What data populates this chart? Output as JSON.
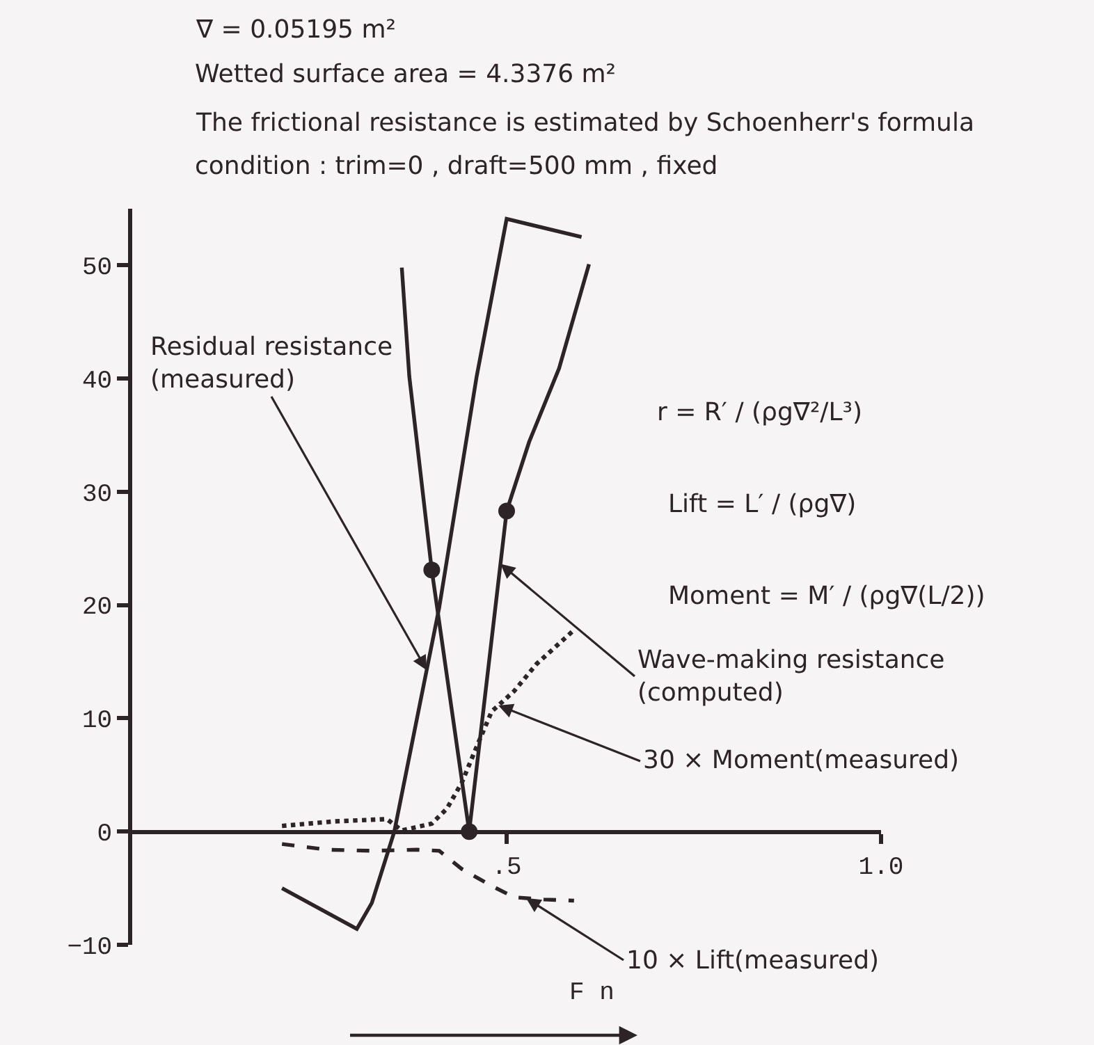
{
  "chart_data": {
    "type": "line",
    "annotations": [
      "∇ = 0.05195 m²",
      "Wetted surface area = 4.3376 m²",
      "The frictional resistance is estimated by Schoenherr's formula",
      "condition : trim=0 , draft=500 mm , fixed",
      "r = R′ / (ρg∇²/L³)",
      "Lift = L′ / (ρg∇)",
      "Moment = M′ / (ρg∇(L/2))"
    ],
    "xlabel": "F n",
    "xlim": [
      0,
      1.0
    ],
    "xticks": [
      {
        "value": 0.5,
        "label": ".5"
      },
      {
        "value": 1.0,
        "label": "1.0"
      }
    ],
    "ylim": [
      -10,
      55
    ],
    "yticks": [
      50,
      40,
      30,
      20,
      10,
      0,
      -10
    ],
    "series": [
      {
        "name": "Residual resistance (measured)",
        "type": "line",
        "color": "#2d2428",
        "line_style": "solid",
        "marker": "none",
        "x": [
          0.2,
          0.3,
          0.32,
          0.35,
          0.41,
          0.46,
          0.5,
          0.6
        ],
        "values": [
          -5.0,
          -8.6,
          -6.3,
          0.0,
          19.8,
          40.2,
          54.1,
          52.5
        ]
      },
      {
        "name": "Wave-making resistance (computed)",
        "type": "line",
        "color": "#2d2428",
        "line_style": "solid",
        "marker": "none",
        "x": [
          0.36,
          0.37,
          0.4,
          0.45,
          0.5,
          0.53,
          0.57,
          0.61
        ],
        "values": [
          49.8,
          40.2,
          23.1,
          0.0,
          28.3,
          34.4,
          40.9,
          50.1
        ]
      },
      {
        "name": "30 × Moment(measured)",
        "type": "line",
        "color": "#2d2428",
        "line_style": "dotted",
        "marker": "none",
        "x": [
          0.2,
          0.27,
          0.34,
          0.36,
          0.4,
          0.42,
          0.44,
          0.46,
          0.48,
          0.51,
          0.54,
          0.59
        ],
        "values": [
          0.5,
          0.9,
          1.1,
          0.1,
          0.7,
          2.0,
          4.3,
          7.5,
          10.6,
          12.4,
          14.8,
          17.8
        ]
      },
      {
        "name": "10 × Lift(measured)",
        "type": "line",
        "color": "#2d2428",
        "line_style": "dashed",
        "marker": "none",
        "x": [
          0.2,
          0.26,
          0.32,
          0.38,
          0.41,
          0.44,
          0.48,
          0.51,
          0.55,
          0.59
        ],
        "values": [
          -1.1,
          -1.6,
          -1.7,
          -1.6,
          -1.7,
          -3.3,
          -4.8,
          -5.8,
          -6.0,
          -6.1
        ]
      },
      {
        "type": "scatter",
        "color": "#2d2428",
        "marker": "circle",
        "x": [
          0.4,
          0.45,
          0.5
        ],
        "values": [
          23.1,
          0.0,
          28.3
        ]
      }
    ]
  }
}
